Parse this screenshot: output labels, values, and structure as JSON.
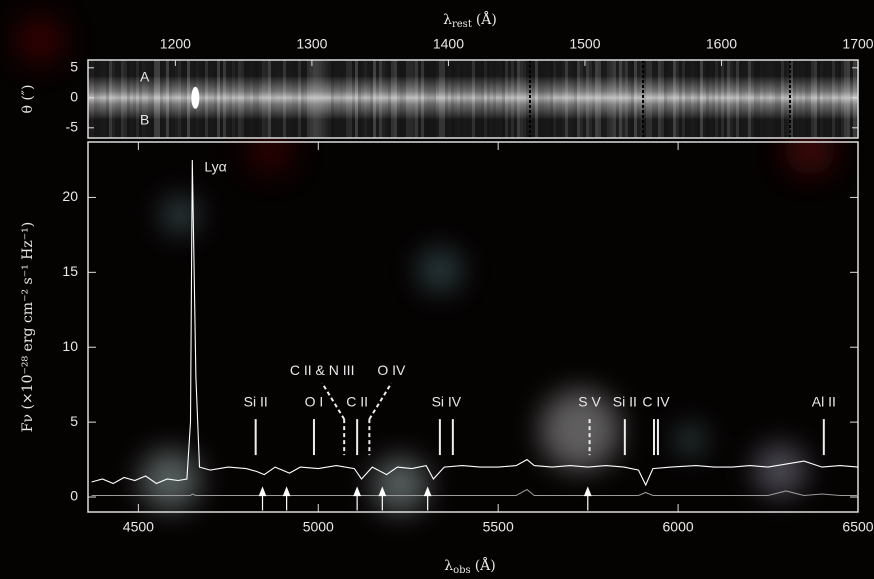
{
  "chart_data": [
    {
      "type": "image",
      "ylabel": "θ (″)",
      "ylim": [
        -6.7,
        6.3
      ],
      "yticks": [
        5,
        0,
        -5
      ],
      "labels": [
        "A",
        "B"
      ],
      "xlabel": {
        "symbol": "λ",
        "subscript": "rest",
        "unit": "(Å)"
      },
      "xlim": [
        1136,
        1700
      ],
      "xticks": [
        1200,
        1300,
        1400,
        1500,
        1600,
        1700
      ]
    },
    {
      "type": "line",
      "xlabel": {
        "symbol": "λ",
        "subscript": "obs",
        "unit": "(Å)"
      },
      "ylabel": "Fν (×10⁻²⁸ erg cm⁻² s⁻¹ Hz⁻¹)",
      "xlim": [
        4360,
        6500
      ],
      "xticks": [
        4500,
        5000,
        5500,
        6000,
        6500
      ],
      "ylim": [
        -1,
        23.7
      ],
      "yticks": [
        0,
        5,
        10,
        15,
        20
      ],
      "x": [
        4370,
        4400,
        4430,
        4460,
        4490,
        4520,
        4550,
        4580,
        4610,
        4635,
        4645,
        4650,
        4660,
        4670,
        4700,
        4750,
        4800,
        4830,
        4850,
        4880,
        4920,
        4950,
        5000,
        5050,
        5100,
        5120,
        5150,
        5190,
        5220,
        5260,
        5300,
        5320,
        5350,
        5400,
        5450,
        5500,
        5550,
        5580,
        5600,
        5650,
        5700,
        5750,
        5800,
        5850,
        5890,
        5910,
        5930,
        5980,
        6050,
        6100,
        6150,
        6200,
        6250,
        6300,
        6350,
        6400,
        6450,
        6500
      ],
      "series": [
        {
          "color": "#ffffff",
          "values": [
            1.0,
            1.2,
            0.9,
            1.3,
            1.1,
            1.4,
            0.9,
            1.2,
            1.1,
            1.2,
            5,
            22.5,
            8,
            2.0,
            1.8,
            2.0,
            1.9,
            1.7,
            1.5,
            2.0,
            1.6,
            2.0,
            1.9,
            2.1,
            1.9,
            1.2,
            2.0,
            1.5,
            2.0,
            1.9,
            2.1,
            1.2,
            2.0,
            2.1,
            2.0,
            2.0,
            2.1,
            2.5,
            2.1,
            2.0,
            2.1,
            2.0,
            2.1,
            2.0,
            1.8,
            0.8,
            1.9,
            2.0,
            2.1,
            2.0,
            2.0,
            2.1,
            2.0,
            2.2,
            2.4,
            2.0,
            2.1,
            2.0
          ]
        },
        {
          "color": "#9a9a9a",
          "values": [
            0.1,
            0.1,
            0.1,
            0.1,
            0.1,
            0.1,
            0.1,
            0.1,
            0.1,
            0.1,
            0.1,
            0.2,
            0.1,
            0.1,
            0.1,
            0.1,
            0.1,
            0.1,
            0.1,
            0.1,
            0.1,
            0.1,
            0.1,
            0.1,
            0.1,
            0.1,
            0.1,
            0.1,
            0.1,
            0.1,
            0.1,
            0.1,
            0.1,
            0.1,
            0.1,
            0.1,
            0.1,
            0.5,
            0.1,
            0.1,
            0.1,
            0.1,
            0.1,
            0.1,
            0.1,
            0.3,
            0.1,
            0.1,
            0.1,
            0.1,
            0.1,
            0.1,
            0.1,
            0.4,
            0.1,
            0.2,
            0.1,
            0.1
          ]
        }
      ],
      "annotations": [
        {
          "label": "Lyα",
          "x": [
            4650
          ]
        },
        {
          "label": "Si II",
          "x": [
            4826
          ]
        },
        {
          "label": "O I",
          "x": [
            4988
          ]
        },
        {
          "label": "C II & N III",
          "x": [
            5072
          ],
          "dashed": true
        },
        {
          "label": "C II",
          "x": [
            5108
          ]
        },
        {
          "label": "O IV",
          "x": [
            5142
          ],
          "dashed": true
        },
        {
          "label": "Si IV",
          "x": [
            5338,
            5374
          ]
        },
        {
          "label": "S V",
          "x": [
            5754
          ],
          "dashed": true
        },
        {
          "label": "Si II",
          "x": [
            5852
          ]
        },
        {
          "label": "C IV",
          "x": [
            5933,
            5944
          ]
        },
        {
          "label": "Al II",
          "x": [
            6405
          ]
        }
      ],
      "arrows": [
        4845,
        4912,
        5108,
        5178,
        5304,
        5749
      ]
    }
  ]
}
